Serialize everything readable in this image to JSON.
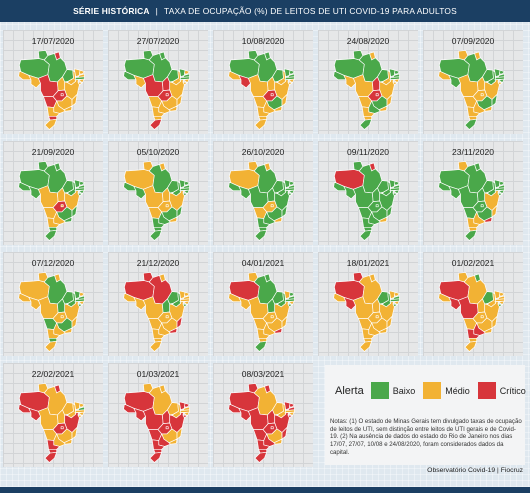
{
  "header": {
    "bold": "SÉRIE HISTÓRICA",
    "separator": "|",
    "title": "TAXA DE OCUPAÇÃO (%) DE LEITOS DE UTI COVID-19 PARA ADULTOS"
  },
  "colors": {
    "Baixo": "#4aa84a",
    "Médio": "#f2b234",
    "Crítico": "#d7353b"
  },
  "legend": {
    "title": "Alerta",
    "baixo": "Baixo",
    "medio": "Médio",
    "critico": "Crítico"
  },
  "notes": "Notas: (1) O estado de Minas Gerais tem divulgado taxas de ocupação de leitos de UTI, sem distinção entre leitos de UTI gerais e de Covid-19. (2) Na ausência de dados do estado do Rio de Janeiro nos dias 17/07, 27/07, 10/08 e 24/08/2020, foram considerados dados da capital.",
  "source": "Observatório Covid-19 | Fiocruz",
  "chart_data": {
    "type": "map",
    "regions": [
      "RR",
      "AP",
      "AM",
      "PA",
      "AC",
      "RO",
      "MT",
      "TO",
      "MA",
      "PI",
      "CE",
      "RN",
      "PB",
      "PE",
      "AL",
      "SE",
      "BA",
      "GO",
      "DF",
      "MS",
      "MG",
      "ES",
      "RJ",
      "SP",
      "PR",
      "SC",
      "RS"
    ],
    "panels": [
      {
        "date": "17/07/2020",
        "values": [
          "Baixo",
          "Crítico",
          "Baixo",
          "Baixo",
          "Médio",
          "Médio",
          "Crítico",
          "Médio",
          "Baixo",
          "Médio",
          "Médio",
          "Médio",
          "Médio",
          "Baixo",
          "Médio",
          "Médio",
          "Médio",
          "Crítico",
          "Crítico",
          "Crítico",
          "Médio",
          "Médio",
          "Médio",
          "Médio",
          "Médio",
          "Crítico",
          "Médio"
        ]
      },
      {
        "date": "27/07/2020",
        "values": [
          "Baixo",
          "Baixo",
          "Baixo",
          "Baixo",
          "Baixo",
          "Médio",
          "Crítico",
          "Crítico",
          "Baixo",
          "Médio",
          "Baixo",
          "Médio",
          "Baixo",
          "Baixo",
          "Médio",
          "Médio",
          "Médio",
          "Crítico",
          "Crítico",
          "Médio",
          "Médio",
          "Médio",
          "Médio",
          "Médio",
          "Médio",
          "Médio",
          "Crítico"
        ]
      },
      {
        "date": "10/08/2020",
        "values": [
          "Baixo",
          "Baixo",
          "Baixo",
          "Baixo",
          "Médio",
          "Crítico",
          "Médio",
          "Médio",
          "Baixo",
          "Médio",
          "Baixo",
          "Baixo",
          "Baixo",
          "Baixo",
          "Médio",
          "Médio",
          "Médio",
          "Crítico",
          "Crítico",
          "Médio",
          "Baixo",
          "Médio",
          "Médio",
          "Médio",
          "Médio",
          "Médio",
          "Médio"
        ]
      },
      {
        "date": "24/08/2020",
        "values": [
          "Baixo",
          "Médio",
          "Baixo",
          "Baixo",
          "Baixo",
          "Médio",
          "Médio",
          "Crítico",
          "Baixo",
          "Médio",
          "Baixo",
          "Baixo",
          "Baixo",
          "Baixo",
          "Médio",
          "Médio",
          "Médio",
          "Crítico",
          "Crítico",
          "Médio",
          "Baixo",
          "Médio",
          "Médio",
          "Baixo",
          "Médio",
          "Médio",
          "Baixo"
        ]
      },
      {
        "date": "07/09/2020",
        "values": [
          "Médio",
          "Médio",
          "Baixo",
          "Baixo",
          "Médio",
          "Baixo",
          "Médio",
          "Médio",
          "Baixo",
          "Baixo",
          "Baixo",
          "Baixo",
          "Baixo",
          "Baixo",
          "Baixo",
          "Médio",
          "Médio",
          "Médio",
          "Médio",
          "Médio",
          "Baixo",
          "Baixo",
          "Médio",
          "Médio",
          "Médio",
          "Médio",
          "Baixo"
        ]
      },
      {
        "date": "21/09/2020",
        "values": [
          "Baixo",
          "Baixo",
          "Baixo",
          "Baixo",
          "Baixo",
          "Baixo",
          "Médio",
          "Médio",
          "Baixo",
          "Baixo",
          "Baixo",
          "Baixo",
          "Baixo",
          "Baixo",
          "Baixo",
          "Baixo",
          "Médio",
          "Crítico",
          "Médio",
          "Médio",
          "Baixo",
          "Baixo",
          "Baixo",
          "Médio",
          "Médio",
          "Baixo",
          "Baixo"
        ]
      },
      {
        "date": "05/10/2020",
        "values": [
          "Médio",
          "Médio",
          "Médio",
          "Baixo",
          "Baixo",
          "Baixo",
          "Médio",
          "Médio",
          "Baixo",
          "Baixo",
          "Baixo",
          "Baixo",
          "Baixo",
          "Baixo",
          "Baixo",
          "Baixo",
          "Médio",
          "Médio",
          "Médio",
          "Médio",
          "Baixo",
          "Baixo",
          "Médio",
          "Baixo",
          "Baixo",
          "Baixo",
          "Baixo"
        ]
      },
      {
        "date": "26/10/2020",
        "values": [
          "Médio",
          "Médio",
          "Médio",
          "Baixo",
          "Baixo",
          "Baixo",
          "Baixo",
          "Baixo",
          "Baixo",
          "Baixo",
          "Baixo",
          "Baixo",
          "Baixo",
          "Baixo",
          "Baixo",
          "Baixo",
          "Baixo",
          "Médio",
          "Médio",
          "Médio",
          "Baixo",
          "Baixo",
          "Médio",
          "Baixo",
          "Baixo",
          "Baixo",
          "Baixo"
        ]
      },
      {
        "date": "09/11/2020",
        "values": [
          "Baixo",
          "Crítico",
          "Crítico",
          "Baixo",
          "Baixo",
          "Baixo",
          "Baixo",
          "Baixo",
          "Baixo",
          "Baixo",
          "Baixo",
          "Baixo",
          "Baixo",
          "Baixo",
          "Baixo",
          "Baixo",
          "Baixo",
          "Baixo",
          "Baixo",
          "Baixo",
          "Baixo",
          "Baixo",
          "Médio",
          "Baixo",
          "Baixo",
          "Baixo",
          "Baixo"
        ]
      },
      {
        "date": "23/11/2020",
        "values": [
          "Médio",
          "Baixo",
          "Baixo",
          "Baixo",
          "Baixo",
          "Baixo",
          "Baixo",
          "Baixo",
          "Baixo",
          "Baixo",
          "Baixo",
          "Baixo",
          "Baixo",
          "Baixo",
          "Baixo",
          "Baixo",
          "Médio",
          "Baixo",
          "Baixo",
          "Baixo",
          "Baixo",
          "Médio",
          "Crítico",
          "Médio",
          "Médio",
          "Médio",
          "Baixo"
        ]
      },
      {
        "date": "07/12/2020",
        "values": [
          "Médio",
          "Médio",
          "Médio",
          "Baixo",
          "Médio",
          "Médio",
          "Médio",
          "Baixo",
          "Baixo",
          "Baixo",
          "Baixo",
          "Médio",
          "Baixo",
          "Baixo",
          "Médio",
          "Baixo",
          "Médio",
          "Médio",
          "Médio",
          "Baixo",
          "Baixo",
          "Médio",
          "Médio",
          "Médio",
          "Médio",
          "Baixo",
          "Médio"
        ]
      },
      {
        "date": "21/12/2020",
        "values": [
          "Crítico",
          "Médio",
          "Crítico",
          "Crítico",
          "Médio",
          "Médio",
          "Médio",
          "Baixo",
          "Baixo",
          "Baixo",
          "Médio",
          "Médio",
          "Médio",
          "Médio",
          "Médio",
          "Baixo",
          "Médio",
          "Médio",
          "Médio",
          "Médio",
          "Médio",
          "Crítico",
          "Crítico",
          "Médio",
          "Médio",
          "Médio",
          "Médio"
        ]
      },
      {
        "date": "04/01/2021",
        "values": [
          "Médio",
          "Baixo",
          "Crítico",
          "Baixo",
          "Médio",
          "Médio",
          "Médio",
          "Baixo",
          "Baixo",
          "Baixo",
          "Médio",
          "Baixo",
          "Baixo",
          "Baixo",
          "Médio",
          "Baixo",
          "Médio",
          "Médio",
          "Médio",
          "Médio",
          "Médio",
          "Médio",
          "Crítico",
          "Médio",
          "Médio",
          "Médio",
          "Baixo"
        ]
      },
      {
        "date": "18/01/2021",
        "values": [
          "Crítico",
          "Médio",
          "Crítico",
          "Médio",
          "Médio",
          "Crítico",
          "Médio",
          "Médio",
          "Baixo",
          "Baixo",
          "Médio",
          "Médio",
          "Baixo",
          "Baixo",
          "Médio",
          "Baixo",
          "Médio",
          "Médio",
          "Médio",
          "Médio",
          "Médio",
          "Médio",
          "Médio",
          "Médio",
          "Médio",
          "Médio",
          "Médio"
        ]
      },
      {
        "date": "01/02/2021",
        "values": [
          "Médio",
          "Baixo",
          "Crítico",
          "Médio",
          "Médio",
          "Crítico",
          "Crítico",
          "Médio",
          "Baixo",
          "Médio",
          "Médio",
          "Médio",
          "Médio",
          "Médio",
          "Médio",
          "Baixo",
          "Médio",
          "Médio",
          "Médio",
          "Médio",
          "Médio",
          "Médio",
          "Médio",
          "Crítico",
          "Crítico",
          "Médio",
          "Médio"
        ]
      },
      {
        "date": "22/02/2021",
        "values": [
          "Médio",
          "Crítico",
          "Crítico",
          "Médio",
          "Crítico",
          "Crítico",
          "Médio",
          "Médio",
          "Médio",
          "Médio",
          "Médio",
          "Médio",
          "Baixo",
          "Médio",
          "Médio",
          "Médio",
          "Crítico",
          "Crítico",
          "Crítico",
          "Médio",
          "Médio",
          "Médio",
          "Médio",
          "Médio",
          "Crítico",
          "Crítico",
          "Crítico"
        ]
      },
      {
        "date": "01/03/2021",
        "values": [
          "Médio",
          "Médio",
          "Crítico",
          "Médio",
          "Crítico",
          "Crítico",
          "Crítico",
          "Crítico",
          "Médio",
          "Médio",
          "Crítico",
          "Crítico",
          "Médio",
          "Médio",
          "Médio",
          "Crítico",
          "Crítico",
          "Crítico",
          "Crítico",
          "Crítico",
          "Médio",
          "Médio",
          "Médio",
          "Crítico",
          "Crítico",
          "Crítico",
          "Crítico"
        ]
      },
      {
        "date": "08/03/2021",
        "values": [
          "Crítico",
          "Crítico",
          "Crítico",
          "Médio",
          "Crítico",
          "Crítico",
          "Crítico",
          "Crítico",
          "Médio",
          "Médio",
          "Crítico",
          "Crítico",
          "Crítico",
          "Médio",
          "Médio",
          "Crítico",
          "Crítico",
          "Crítico",
          "Crítico",
          "Crítico",
          "Médio",
          "Crítico",
          "Médio",
          "Crítico",
          "Crítico",
          "Crítico",
          "Crítico"
        ]
      }
    ]
  }
}
